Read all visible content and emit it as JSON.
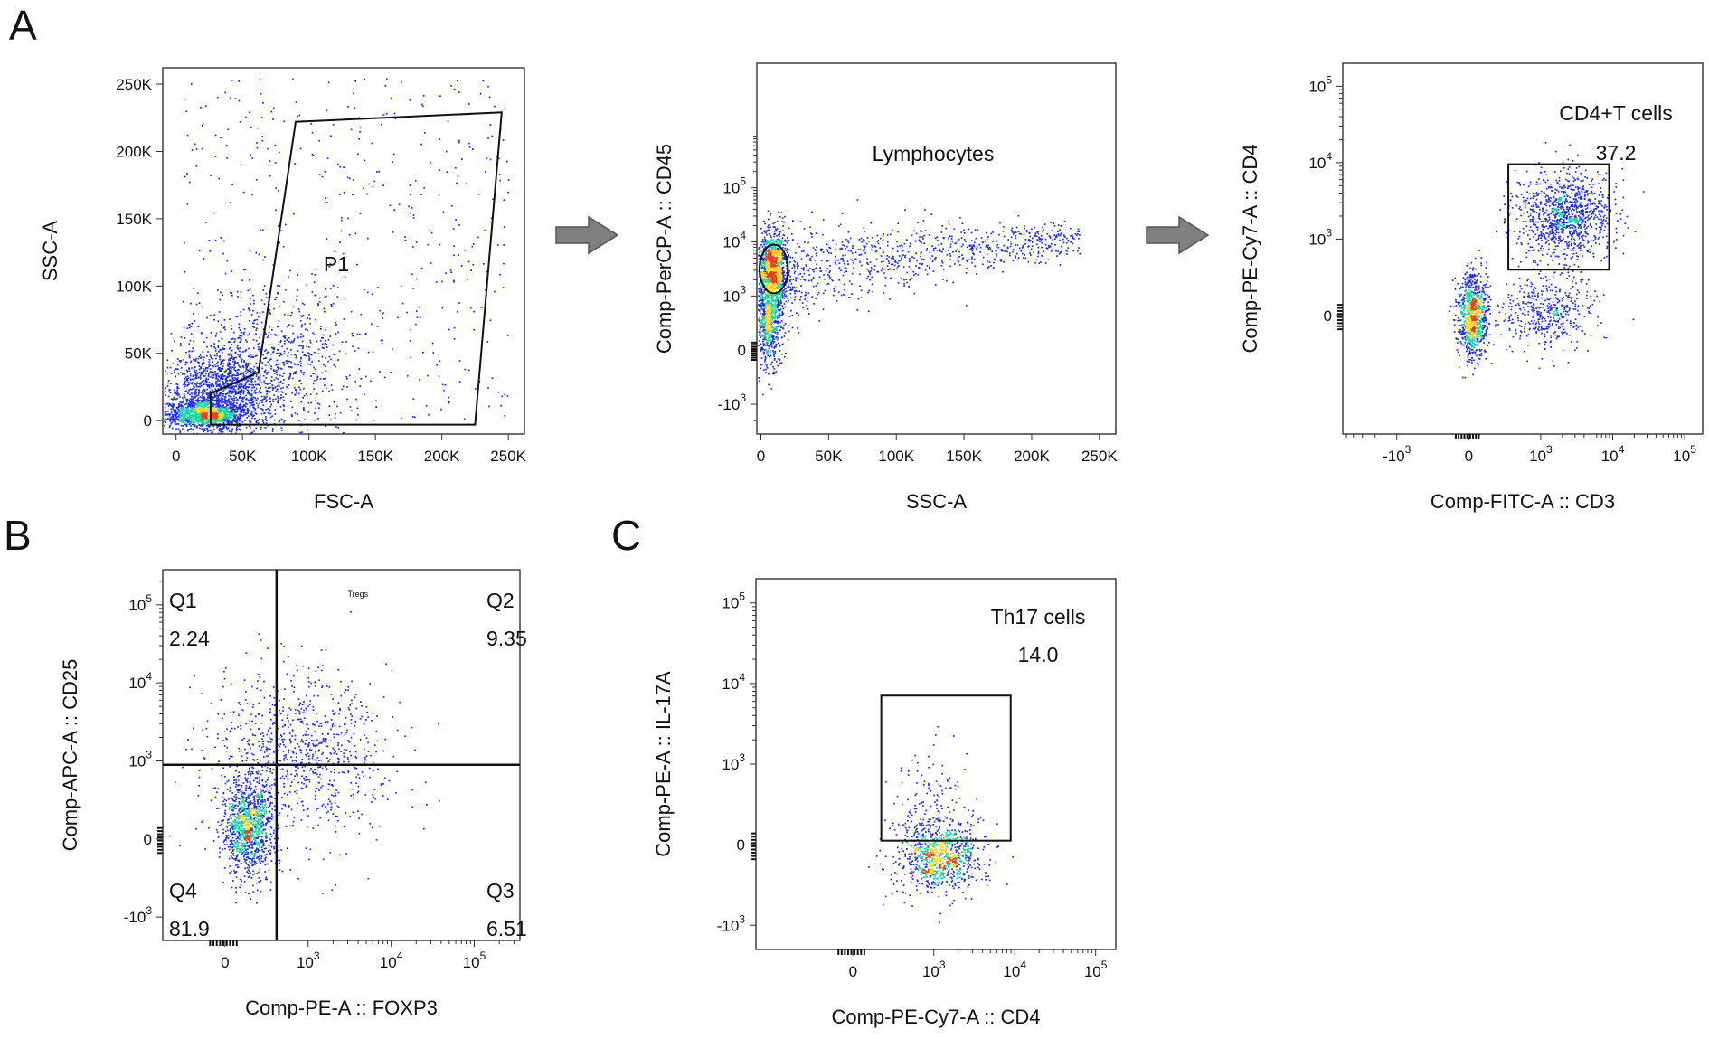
{
  "panel_letters": {
    "a": "A",
    "b": "B",
    "c": "C"
  },
  "arrows": [
    {
      "name": "gate-arrow-1",
      "icon": "right-arrow-icon"
    },
    {
      "name": "gate-arrow-2",
      "icon": "right-arrow-icon"
    }
  ],
  "colors": {
    "dots": "#1c2cf0",
    "dense_mid": "#18d8a0",
    "dense_high": "#ffd21f",
    "dense_peak": "#e8401c",
    "frame": "#333333"
  },
  "chart_data": [
    {
      "id": "a1",
      "type": "scatter",
      "panel": "A",
      "xlabel": "FSC-A",
      "ylabel": "SSC-A",
      "xscale": "linear",
      "yscale": "linear",
      "xlim": [
        -10000,
        262144
      ],
      "ylim": [
        -10000,
        262144
      ],
      "xticks": [
        {
          "v": 0,
          "label": "0"
        },
        {
          "v": 50000,
          "label": "50K"
        },
        {
          "v": 100000,
          "label": "100K"
        },
        {
          "v": 150000,
          "label": "150K"
        },
        {
          "v": 200000,
          "label": "200K"
        },
        {
          "v": 250000,
          "label": "250K"
        }
      ],
      "yticks": [
        {
          "v": 0,
          "label": "0"
        },
        {
          "v": 50000,
          "label": "50K"
        },
        {
          "v": 100000,
          "label": "100K"
        },
        {
          "v": 150000,
          "label": "150K"
        },
        {
          "v": 200000,
          "label": "200K"
        },
        {
          "v": 250000,
          "label": "250K"
        }
      ],
      "gates": [
        {
          "name": "P1",
          "shape": "polygon",
          "points": [
            [
              26000,
              -3000
            ],
            [
              26000,
              20000
            ],
            [
              62000,
              36000
            ],
            [
              90000,
              222000
            ],
            [
              245000,
              229000
            ],
            [
              225000,
              -3000
            ]
          ],
          "label_at": [
            140000,
            110000
          ]
        }
      ],
      "annotations": [
        {
          "name": "gate-p1-label",
          "text": "P1",
          "cls": "gate-label"
        }
      ],
      "populations": [
        {
          "mx": 20000,
          "my": 5000,
          "sx": 16000,
          "sy": 5000,
          "n": 1100
        },
        {
          "mx": 35000,
          "my": 22000,
          "sx": 22000,
          "sy": 16000,
          "n": 1300
        },
        {
          "mx": 70000,
          "my": 45000,
          "sx": 32000,
          "sy": 28000,
          "n": 700
        }
      ],
      "uniform": [
        {
          "x": [
            5000,
            250000
          ],
          "y": [
            0,
            255000
          ],
          "n": 480
        }
      ],
      "seed": 11
    },
    {
      "id": "a2",
      "type": "scatter",
      "panel": "A",
      "xlabel": "SSC-A",
      "ylabel": "Comp-PerCP-A :: CD45",
      "xscale": "linear",
      "yscale": "biexp",
      "xlim": [
        -3000,
        262144
      ],
      "ylim": [
        -1.55,
        5.3
      ],
      "xticks": [
        {
          "v": 0,
          "label": "0"
        },
        {
          "v": 50000,
          "label": "50K"
        },
        {
          "v": 100000,
          "label": "100K"
        },
        {
          "v": 150000,
          "label": "150K"
        },
        {
          "v": 200000,
          "label": "200K"
        },
        {
          "v": 250000,
          "label": "250K"
        }
      ],
      "yticks": [
        {
          "v": -1,
          "label": "-10",
          "sup": "3"
        },
        {
          "v": 0,
          "label": "0"
        },
        {
          "v": 1,
          "label": "10",
          "sup": "3"
        },
        {
          "v": 2,
          "label": "10",
          "sup": "4"
        },
        {
          "v": 3,
          "label": "10",
          "sup": "5"
        }
      ],
      "gates": [
        {
          "name": "Lymphocytes",
          "shape": "ellipse",
          "cx": 9500,
          "cy": 1.5,
          "rx": 10500,
          "ry": 0.45
        }
      ],
      "annotations": [
        {
          "name": "gate-lymphocytes-label",
          "text": "Lymphocytes",
          "cls": "gate-label"
        }
      ],
      "populations": [
        {
          "mx": 7000,
          "my": 1.55,
          "sx": 5000,
          "sy": 0.32,
          "n": 900
        },
        {
          "mx": 5000,
          "my": 0.55,
          "sx": 4500,
          "sy": 0.45,
          "n": 650
        },
        {
          "mx": 9000,
          "my": 1.2,
          "sx": 9000,
          "sy": 0.5,
          "n": 350
        }
      ],
      "trend": {
        "x": [
          10000,
          235000
        ],
        "y0": 1.15,
        "y1": 2.05,
        "sy": 0.42,
        "n": 900
      },
      "seed": 23
    },
    {
      "id": "a3",
      "type": "scatter",
      "panel": "A",
      "xlabel": "Comp-FITC-A :: CD3",
      "ylabel": "Comp-PE-Cy7-A :: CD4",
      "xscale": "biexp",
      "yscale": "biexp",
      "xlim": [
        -1.75,
        3.25
      ],
      "ylim": [
        -1.55,
        3.3
      ],
      "xticks": [
        {
          "v": -1,
          "label": "-10",
          "sup": "3"
        },
        {
          "v": 0,
          "label": "0"
        },
        {
          "v": 1,
          "label": "10",
          "sup": "3"
        },
        {
          "v": 2,
          "label": "10",
          "sup": "4"
        },
        {
          "v": 3,
          "label": "10",
          "sup": "5"
        }
      ],
      "yticks": [
        {
          "v": 0,
          "label": "0"
        },
        {
          "v": 1,
          "label": "10",
          "sup": "3"
        },
        {
          "v": 2,
          "label": "10",
          "sup": "4"
        },
        {
          "v": 3,
          "label": "10",
          "sup": "5"
        }
      ],
      "gates": [
        {
          "name": "CD4+T cells",
          "shape": "rect",
          "x0": 0.55,
          "x1": 1.95,
          "y0": 0.6,
          "y1": 1.98
        }
      ],
      "annotations": [
        {
          "name": "gate-cd4-label",
          "text": "CD4+T cells",
          "cls": "gate-label"
        },
        {
          "name": "gate-cd4-value",
          "text": "37.2",
          "cls": "gate-value"
        }
      ],
      "populations": [
        {
          "mx": 0.05,
          "my": 0.02,
          "sx": 0.1,
          "sy": 0.28,
          "n": 900
        },
        {
          "mx": 1.3,
          "my": 1.3,
          "sx": 0.33,
          "sy": 0.28,
          "n": 1050
        },
        {
          "mx": 1.05,
          "my": 0.05,
          "sx": 0.32,
          "sy": 0.26,
          "n": 450
        }
      ],
      "seed": 37
    },
    {
      "id": "b",
      "type": "scatter",
      "panel": "B",
      "xlabel": "Comp-PE-A :: FOXP3",
      "ylabel": "Comp-APC-A :: CD25",
      "xscale": "biexp",
      "yscale": "biexp",
      "xlim": [
        -0.75,
        3.55
      ],
      "ylim": [
        -1.3,
        3.45
      ],
      "xticks": [
        {
          "v": 0,
          "label": "0"
        },
        {
          "v": 1,
          "label": "10",
          "sup": "3"
        },
        {
          "v": 2,
          "label": "10",
          "sup": "4"
        },
        {
          "v": 3,
          "label": "10",
          "sup": "5"
        }
      ],
      "yticks": [
        {
          "v": -1,
          "label": "-10",
          "sup": "3"
        },
        {
          "v": 0,
          "label": "0"
        },
        {
          "v": 1,
          "label": "10",
          "sup": "3"
        },
        {
          "v": 2,
          "label": "10",
          "sup": "4"
        },
        {
          "v": 3,
          "label": "10",
          "sup": "5"
        }
      ],
      "quadrant": {
        "x": 0.62,
        "y": 0.95,
        "tag": "Tregs"
      },
      "quadrants": [
        {
          "name": "Q1",
          "value": "2.24",
          "pos": "top-left"
        },
        {
          "name": "Q2",
          "value": "9.35",
          "pos": "top-right"
        },
        {
          "name": "Q3",
          "value": "6.51",
          "pos": "bottom-right"
        },
        {
          "name": "Q4",
          "value": "81.9",
          "pos": "bottom-left"
        }
      ],
      "populations": [
        {
          "mx": 0.28,
          "my": 0.15,
          "sx": 0.16,
          "sy": 0.32,
          "n": 1100
        },
        {
          "mx": 0.9,
          "my": 1.1,
          "sx": 0.55,
          "sy": 0.55,
          "n": 900
        }
      ],
      "seed": 53
    },
    {
      "id": "c",
      "type": "scatter",
      "panel": "C",
      "xlabel": "Comp-PE-Cy7-A :: CD4",
      "ylabel": "Comp-PE-A :: IL-17A",
      "xscale": "biexp",
      "yscale": "biexp",
      "xlim": [
        -1.2,
        3.25
      ],
      "ylim": [
        -1.3,
        3.3
      ],
      "xticks": [
        {
          "v": 0,
          "label": "0"
        },
        {
          "v": 1,
          "label": "10",
          "sup": "3"
        },
        {
          "v": 2,
          "label": "10",
          "sup": "4"
        },
        {
          "v": 3,
          "label": "10",
          "sup": "5"
        }
      ],
      "yticks": [
        {
          "v": -1,
          "label": "-10",
          "sup": "3"
        },
        {
          "v": 0,
          "label": "0"
        },
        {
          "v": 1,
          "label": "10",
          "sup": "3"
        },
        {
          "v": 2,
          "label": "10",
          "sup": "4"
        },
        {
          "v": 3,
          "label": "10",
          "sup": "5"
        }
      ],
      "gates": [
        {
          "name": "Th17 cells",
          "shape": "rect",
          "x0": 0.35,
          "x1": 1.95,
          "y0": 0.05,
          "y1": 1.85
        }
      ],
      "annotations": [
        {
          "name": "gate-th17-label",
          "text": "Th17 cells",
          "cls": "gate-label"
        },
        {
          "name": "gate-th17-value",
          "text": "14.0",
          "cls": "gate-value"
        }
      ],
      "populations": [
        {
          "mx": 1.05,
          "my": -0.15,
          "sx": 0.27,
          "sy": 0.22,
          "n": 850
        },
        {
          "mx": 1.0,
          "my": 0.4,
          "sx": 0.22,
          "sy": 0.4,
          "n": 160
        }
      ],
      "seed": 71
    }
  ]
}
